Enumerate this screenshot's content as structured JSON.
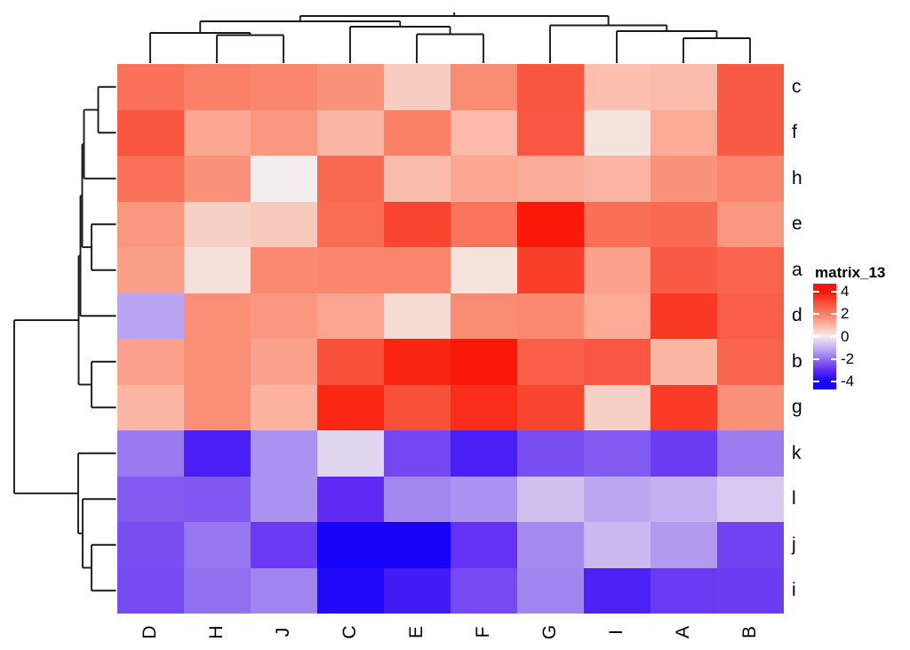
{
  "figure": {
    "background": "#ffffff",
    "type_note": "clustered heatmap with row and column dendrograms"
  },
  "chart_data": {
    "type": "heatmap",
    "legend": {
      "title": "matrix_13",
      "ticks": [
        4,
        2,
        0,
        -2,
        -4
      ],
      "bar_range": [
        -4.7,
        4.7
      ]
    },
    "columns": [
      "D",
      "H",
      "J",
      "C",
      "E",
      "F",
      "G",
      "I",
      "A",
      "B"
    ],
    "rows": [
      "c",
      "f",
      "h",
      "e",
      "a",
      "d",
      "b",
      "g",
      "k",
      "l",
      "j",
      "i"
    ],
    "values": [
      [
        2.3,
        2.0,
        1.9,
        1.7,
        0.6,
        1.8,
        2.9,
        0.85,
        0.9,
        2.8
      ],
      [
        2.9,
        1.3,
        1.6,
        1.0,
        2.0,
        0.95,
        2.85,
        0.2,
        1.25,
        2.8
      ],
      [
        2.3,
        1.7,
        0.0,
        2.5,
        0.9,
        1.3,
        1.2,
        1.05,
        1.7,
        1.9
      ],
      [
        1.6,
        0.55,
        0.65,
        2.4,
        3.2,
        2.25,
        3.95,
        2.35,
        2.5,
        1.6
      ],
      [
        1.45,
        0.25,
        1.85,
        1.9,
        1.9,
        0.2,
        3.3,
        1.4,
        2.8,
        2.6
      ],
      [
        -1.2,
        1.75,
        1.6,
        1.35,
        0.35,
        1.8,
        1.85,
        1.25,
        3.4,
        2.7
      ],
      [
        1.4,
        1.75,
        1.4,
        3.0,
        3.75,
        3.95,
        2.7,
        2.85,
        1.0,
        2.6
      ],
      [
        1.0,
        1.75,
        1.1,
        3.7,
        3.0,
        3.6,
        3.2,
        0.55,
        3.35,
        1.7
      ],
      [
        -1.85,
        -3.3,
        -1.5,
        -0.4,
        -2.6,
        -3.3,
        -2.5,
        -2.3,
        -2.75,
        -1.8
      ],
      [
        -2.3,
        -2.35,
        -1.5,
        -3.0,
        -1.65,
        -1.5,
        -0.75,
        -1.15,
        -1.0,
        -0.6
      ],
      [
        -2.5,
        -1.9,
        -2.8,
        -4.0,
        -4.0,
        -2.9,
        -1.6,
        -0.85,
        -1.35,
        -2.65
      ],
      [
        -2.55,
        -2.0,
        -1.7,
        -3.85,
        -3.4,
        -2.55,
        -1.7,
        -3.25,
        -2.8,
        -2.75
      ]
    ],
    "colormap": {
      "anchors": [
        -4,
        -3,
        -2,
        -1,
        0,
        1,
        2,
        3,
        4
      ],
      "colors": [
        "#1803FA",
        "#5F2BF4",
        "#9170EF",
        "#C4B1F1",
        "#F3EEED",
        "#FBB7A4",
        "#FA8167",
        "#F9503A",
        "#FA1505"
      ]
    },
    "col_dendrogram": {
      "pos": 18,
      "children": [
        {
          "pos": 24,
          "children": [
            {
              "pos": 37,
              "children": [
                {
                  "leaf": "D"
                },
                {
                  "pos": 39.5,
                  "children": [
                    {
                      "leaf": "H"
                    },
                    {
                      "leaf": "J"
                    }
                  ]
                }
              ]
            },
            {
              "pos": 30,
              "children": [
                {
                  "leaf": "C"
                },
                {
                  "pos": 38.5,
                  "children": [
                    {
                      "leaf": "E"
                    },
                    {
                      "leaf": "F"
                    }
                  ]
                }
              ]
            }
          ]
        },
        {
          "pos": 28.5,
          "children": [
            {
              "leaf": "G"
            },
            {
              "pos": 35,
              "children": [
                {
                  "leaf": "I"
                },
                {
                  "pos": 43,
                  "children": [
                    {
                      "leaf": "A"
                    },
                    {
                      "leaf": "B"
                    }
                  ]
                }
              ]
            }
          ]
        }
      ]
    },
    "row_dendrogram": {
      "pos": 16,
      "children": [
        {
          "pos": 88.5,
          "children": [
            {
              "pos": 90.5,
              "children": [
                {
                  "pos": 92.5,
                  "children": [
                    {
                      "pos": 94.5,
                      "children": [
                        {
                          "pos": 110.5,
                          "children": [
                            {
                              "leaf": "c"
                            },
                            {
                              "leaf": "f"
                            }
                          ]
                        },
                        {
                          "leaf": "h"
                        }
                      ]
                    },
                    {
                      "pos": 103,
                      "children": [
                        {
                          "leaf": "e"
                        },
                        {
                          "leaf": "a"
                        }
                      ]
                    }
                  ]
                },
                {
                  "leaf": "d"
                }
              ]
            },
            {
              "pos": 103,
              "children": [
                {
                  "leaf": "b"
                },
                {
                  "leaf": "g"
                }
              ]
            }
          ]
        },
        {
          "pos": 88,
          "children": [
            {
              "leaf": "k"
            },
            {
              "pos": 93,
              "children": [
                {
                  "leaf": "l"
                },
                {
                  "pos": 103,
                  "children": [
                    {
                      "leaf": "j"
                    },
                    {
                      "leaf": "i"
                    }
                  ]
                }
              ]
            }
          ]
        }
      ]
    }
  }
}
